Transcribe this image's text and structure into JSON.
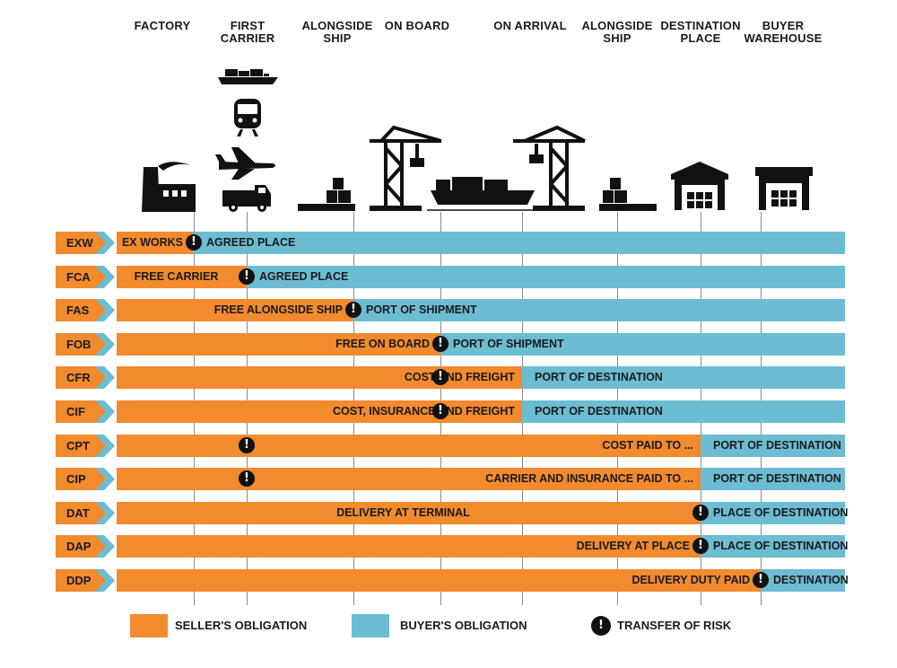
{
  "columns": [
    {
      "label": "FACTORY"
    },
    {
      "label": "FIRST\nCARRIER"
    },
    {
      "label": "ALONGSIDE\nSHIP"
    },
    {
      "label": "ON BOARD"
    },
    {
      "label": "ON ARRIVAL"
    },
    {
      "label": "ALONGSIDE\nSHIP"
    },
    {
      "label": "DESTINATION\nPLACE"
    },
    {
      "label": "BUYER\nWAREHOUSE"
    }
  ],
  "icons": [
    "cargo-ship-icon",
    "train-icon",
    "airplane-icon",
    "truck-icon",
    "factory-icon",
    "pallet-icon",
    "crane-icon",
    "ship-icon",
    "warehouse-icon"
  ],
  "colors": {
    "seller": "#f28a2e",
    "buyer": "#6cbcd2",
    "risk": "#111111"
  },
  "terms": [
    {
      "code": "EXW",
      "seller_label": "EX WORKS",
      "buyer_label": "AGREED PLACE",
      "risk_at": 0,
      "seller_label_align": "right"
    },
    {
      "code": "FCA",
      "seller_label": "FREE CARRIER",
      "buyer_label": "AGREED PLACE",
      "risk_at": 1,
      "seller_label_align": "center"
    },
    {
      "code": "FAS",
      "seller_label": "FREE ALONGSIDE SHIP",
      "buyer_label": "PORT OF SHIPMENT",
      "risk_at": 2,
      "seller_label_align": "right"
    },
    {
      "code": "FOB",
      "seller_label": "FREE ON BOARD",
      "buyer_label": "PORT OF SHIPMENT",
      "risk_at": 3,
      "seller_label_align": "right"
    },
    {
      "code": "CFR",
      "seller_label": "COST AND FREIGHT",
      "buyer_label": "PORT OF DESTINATION",
      "risk_at": 3,
      "split_at": 4,
      "seller_label_align": "right"
    },
    {
      "code": "CIF",
      "seller_label": "COST, INSURANCE AND FREIGHT",
      "buyer_label": "PORT OF DESTINATION",
      "risk_at": 3,
      "split_at": 4,
      "seller_label_align": "right"
    },
    {
      "code": "CPT",
      "seller_label": "COST PAID TO ...",
      "buyer_label": "PORT OF DESTINATION",
      "risk_at": 1,
      "split_at": 6,
      "seller_label_align": "right"
    },
    {
      "code": "CIP",
      "seller_label": "CARRIER AND INSURANCE PAID TO ...",
      "buyer_label": "PORT OF DESTINATION",
      "risk_at": 1,
      "split_at": 6,
      "seller_label_align": "right"
    },
    {
      "code": "DAT",
      "seller_label": "DELIVERY AT TERMINAL",
      "buyer_label": "PLACE OF DESTINATION",
      "risk_at": 6,
      "seller_label_align": "center"
    },
    {
      "code": "DAP",
      "seller_label": "DELIVERY AT PLACE",
      "buyer_label": "PLACE OF DESTINATION",
      "risk_at": 6,
      "seller_label_align": "right"
    },
    {
      "code": "DDP",
      "seller_label": "DELIVERY DUTY PAID",
      "buyer_label": "DESTINATION",
      "risk_at": 7,
      "seller_label_align": "right"
    }
  ],
  "legend": {
    "seller": "SELLER'S OBLIGATION",
    "buyer": "BUYER'S OBLIGATION",
    "risk": "TRANSFER OF RISK",
    "risk_symbol": "!"
  }
}
